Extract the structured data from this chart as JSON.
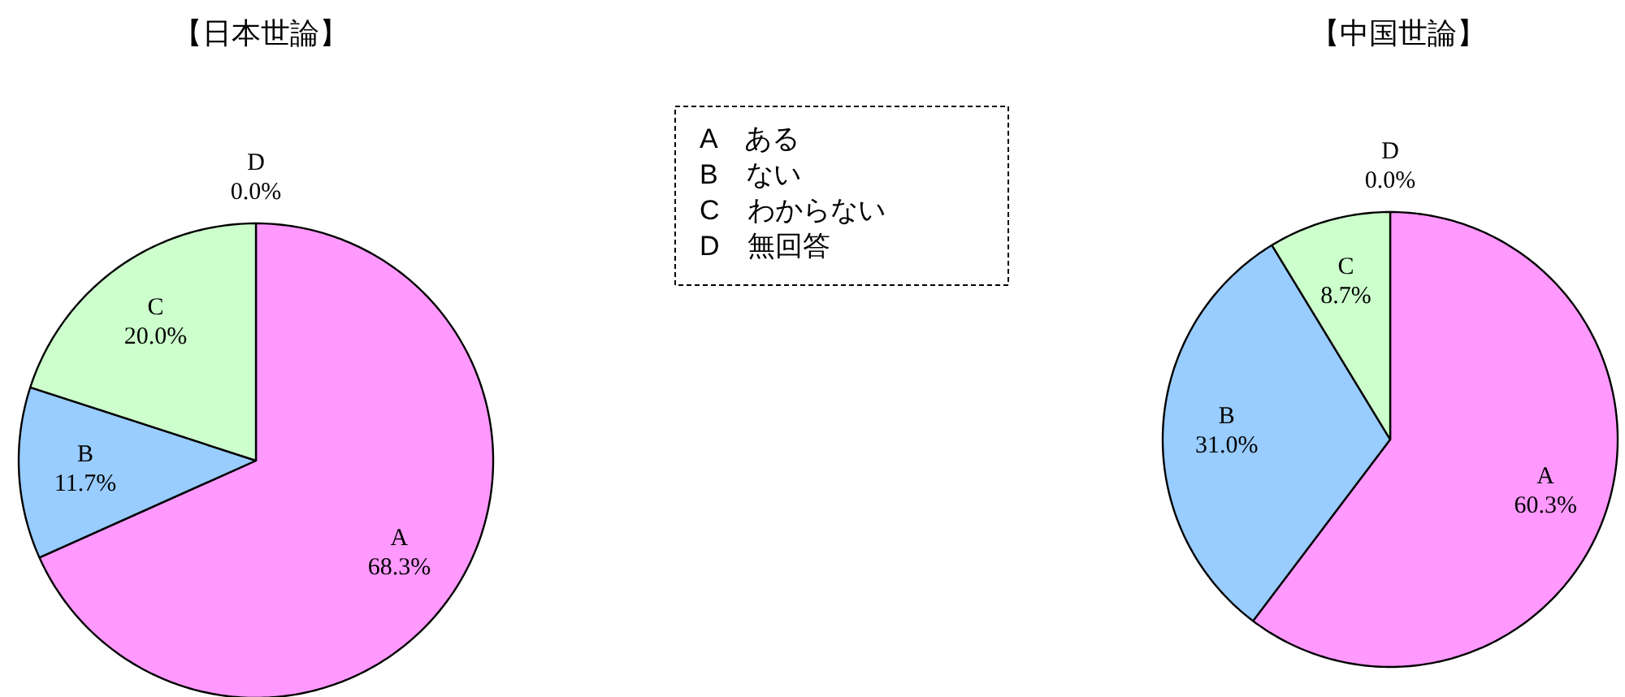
{
  "chart_data": [
    {
      "type": "pie",
      "title": "【日本世論】",
      "categories": [
        "A",
        "B",
        "C",
        "D"
      ],
      "values": [
        68.3,
        11.7,
        20.0,
        0.0
      ],
      "colors": [
        "#ff99ff",
        "#99ccff",
        "#ccffcc",
        "#ffffcc"
      ],
      "value_labels": [
        "68.3%",
        "11.7%",
        "20.0%",
        "0.0%"
      ],
      "annotations": [
        "A　ある",
        "B　ない",
        "C　わからない",
        "D　無回答"
      ]
    },
    {
      "type": "pie",
      "title": "【中国世論】",
      "categories": [
        "A",
        "B",
        "C",
        "D"
      ],
      "values": [
        60.3,
        31.0,
        8.7,
        0.0
      ],
      "colors": [
        "#ff99ff",
        "#99ccff",
        "#ccffcc",
        "#ffffcc"
      ],
      "value_labels": [
        "60.3%",
        "31.0%",
        "8.7%",
        "0.0%"
      ]
    }
  ]
}
